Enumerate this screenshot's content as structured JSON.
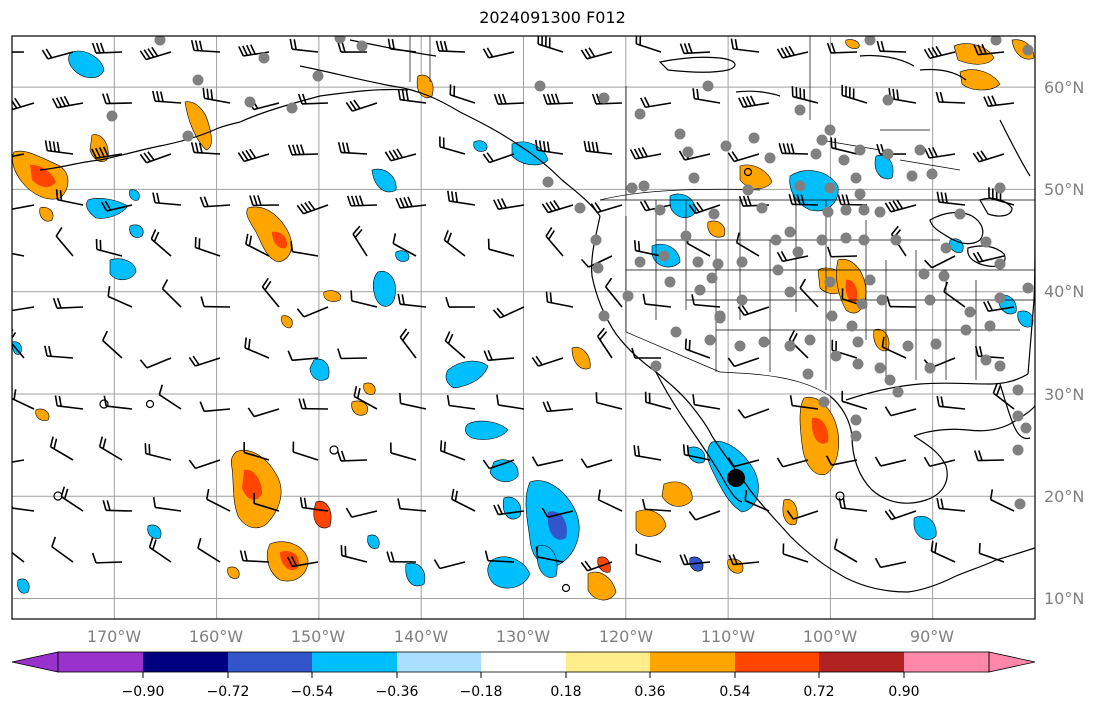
{
  "title": "2024091300 F012",
  "map": {
    "lon_range": [
      -180,
      -80
    ],
    "lat_range": [
      8,
      65
    ],
    "lat_labels": [
      "60°N",
      "50°N",
      "40°N",
      "30°N",
      "20°N",
      "10°N"
    ],
    "lon_labels": [
      "170°W",
      "160°W",
      "150°W",
      "140°W",
      "130°W",
      "120°W",
      "110°W",
      "100°W",
      "90°W"
    ],
    "grid": true,
    "grid_color": "#a0a0a0",
    "label_color": "#808080"
  },
  "colorbar": {
    "tick_labels": [
      "−0.90",
      "−0.72",
      "−0.54",
      "−0.36",
      "−0.18",
      "0.18",
      "0.36",
      "0.54",
      "0.72",
      "0.90"
    ],
    "colors": [
      "#9932cc",
      "#000080",
      "#3355cc",
      "#00bfff",
      "#aadfff",
      "#ffffff",
      "#ffec8b",
      "#ffa500",
      "#ff4500",
      "#b22222",
      "#ff88aa"
    ],
    "extend": "both"
  },
  "fields": {
    "positive_colors": [
      "#ffec8b",
      "#ffa500",
      "#ff4500"
    ],
    "negative_colors": [
      "#aadfff",
      "#00bfff",
      "#3355cc"
    ],
    "station_marker_color": "#808080"
  }
}
